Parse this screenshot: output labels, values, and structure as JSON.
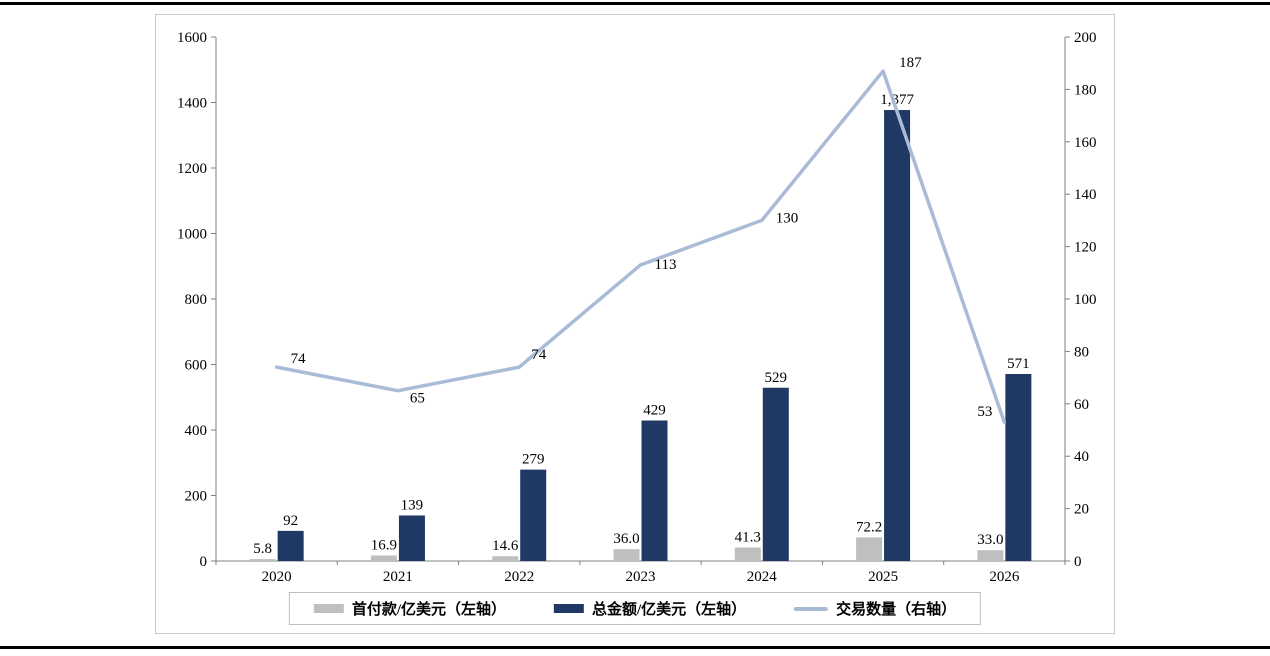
{
  "chart_data": {
    "type": "combo",
    "categories": [
      "2020",
      "2021",
      "2022",
      "2023",
      "2024",
      "2025",
      "2026"
    ],
    "series": [
      {
        "name": "首付款/亿美元（左轴）",
        "type": "bar",
        "axis": "left",
        "color": "#BFBFBF",
        "values": [
          5.8,
          16.9,
          14.6,
          36.0,
          41.3,
          72.2,
          33.0
        ],
        "labels": [
          "5.8",
          "16.9",
          "14.6",
          "36.0",
          "41.3",
          "72.2",
          "33.0"
        ]
      },
      {
        "name": "总金额/亿美元（左轴）",
        "type": "bar",
        "axis": "left",
        "color": "#1F3864",
        "values": [
          92,
          139,
          279,
          429,
          529,
          1377,
          571
        ],
        "labels": [
          "92",
          "139",
          "279",
          "429",
          "529",
          "1,377",
          "571"
        ]
      },
      {
        "name": "交易数量（右轴）",
        "type": "line",
        "axis": "right",
        "color": "#A9BBD6",
        "values": [
          74,
          65,
          74,
          113,
          130,
          187,
          53
        ],
        "labels": [
          "74",
          "65",
          "74",
          "113",
          "130",
          "187",
          "53"
        ]
      }
    ],
    "left_axis": {
      "min": 0,
      "max": 1600,
      "step": 200,
      "tick_labels": [
        "0",
        "200",
        "400",
        "600",
        "800",
        "1000",
        "1200",
        "1400",
        "1600"
      ]
    },
    "right_axis": {
      "min": 0,
      "max": 200,
      "step": 20,
      "tick_labels": [
        "0",
        "20",
        "40",
        "60",
        "80",
        "100",
        "120",
        "140",
        "160",
        "180",
        "200"
      ]
    },
    "title": "",
    "xlabel": "",
    "ylabel": "",
    "grid": false,
    "legend_position": "bottom"
  }
}
